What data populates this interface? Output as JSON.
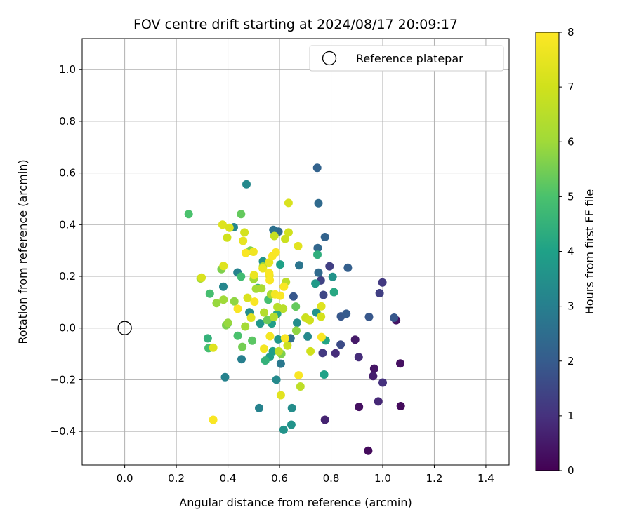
{
  "chart_data": {
    "type": "scatter",
    "title": "FOV centre drift starting at 2024/08/17 20:09:17",
    "xlabel": "Angular distance from reference (arcmin)",
    "ylabel": "Rotation from reference (arcmin)",
    "xlim": [
      -0.165,
      1.49
    ],
    "ylim": [
      -0.53,
      1.12
    ],
    "xticks": [
      0.0,
      0.2,
      0.4,
      0.6,
      0.8,
      1.0,
      1.2,
      1.4
    ],
    "xtick_labels": [
      "0.0",
      "0.2",
      "0.4",
      "0.6",
      "0.8",
      "1.0",
      "1.2",
      "1.4"
    ],
    "yticks": [
      -0.4,
      -0.2,
      0.0,
      0.2,
      0.4,
      0.6,
      0.8,
      1.0
    ],
    "ytick_labels": [
      "−0.4",
      "−0.2",
      "0.0",
      "0.2",
      "0.4",
      "0.6",
      "0.8",
      "1.0"
    ],
    "grid": true,
    "legend": {
      "position": "top-right",
      "entries": [
        {
          "label": "Reference platepar",
          "marker": "open-circle",
          "x": 0.0,
          "y": 0.0
        }
      ]
    },
    "colorbar": {
      "label": "Hours from first FF file",
      "colormap": "viridis",
      "range": [
        0,
        8
      ],
      "ticks": [
        0,
        1,
        2,
        3,
        4,
        5,
        6,
        7,
        8
      ],
      "tick_labels": [
        "0",
        "1",
        "2",
        "3",
        "4",
        "5",
        "6",
        "7",
        "8"
      ]
    },
    "points": [
      {
        "x": 0.944,
        "y": -0.475,
        "h": 0.2
      },
      {
        "x": 1.07,
        "y": -0.302,
        "h": 0.2
      },
      {
        "x": 1.068,
        "y": -0.137,
        "h": 0.3
      },
      {
        "x": 1.052,
        "y": 0.03,
        "h": 0.4
      },
      {
        "x": 0.908,
        "y": -0.305,
        "h": 0.3
      },
      {
        "x": 0.967,
        "y": -0.157,
        "h": 0.4
      },
      {
        "x": 0.893,
        "y": -0.045,
        "h": 0.5
      },
      {
        "x": 0.963,
        "y": -0.186,
        "h": 0.6
      },
      {
        "x": 0.776,
        "y": -0.355,
        "h": 0.7
      },
      {
        "x": 0.983,
        "y": -0.284,
        "h": 0.8
      },
      {
        "x": 1.0,
        "y": -0.211,
        "h": 1.0
      },
      {
        "x": 0.907,
        "y": -0.113,
        "h": 0.9
      },
      {
        "x": 0.817,
        "y": -0.098,
        "h": 0.9
      },
      {
        "x": 0.767,
        "y": -0.097,
        "h": 1.2
      },
      {
        "x": 0.999,
        "y": 0.176,
        "h": 1.2
      },
      {
        "x": 0.988,
        "y": 0.135,
        "h": 1.3
      },
      {
        "x": 0.794,
        "y": 0.239,
        "h": 1.3
      },
      {
        "x": 0.837,
        "y": -0.064,
        "h": 1.6
      },
      {
        "x": 0.77,
        "y": 0.128,
        "h": 1.5
      },
      {
        "x": 0.76,
        "y": 0.184,
        "h": 1.4
      },
      {
        "x": 1.044,
        "y": 0.04,
        "h": 1.9
      },
      {
        "x": 0.947,
        "y": 0.043,
        "h": 1.9
      },
      {
        "x": 0.838,
        "y": 0.045,
        "h": 1.9
      },
      {
        "x": 0.859,
        "y": 0.055,
        "h": 2.0
      },
      {
        "x": 0.865,
        "y": 0.233,
        "h": 2.1
      },
      {
        "x": 0.776,
        "y": 0.352,
        "h": 2.2
      },
      {
        "x": 0.748,
        "y": 0.309,
        "h": 2.3
      },
      {
        "x": 0.746,
        "y": 0.62,
        "h": 2.2
      },
      {
        "x": 0.751,
        "y": 0.483,
        "h": 2.4
      },
      {
        "x": 0.751,
        "y": 0.214,
        "h": 2.4
      },
      {
        "x": 0.654,
        "y": 0.122,
        "h": 1.9
      },
      {
        "x": 0.643,
        "y": -0.04,
        "h": 2.5
      },
      {
        "x": 0.596,
        "y": 0.373,
        "h": 2.4
      },
      {
        "x": 0.576,
        "y": 0.38,
        "h": 2.6
      },
      {
        "x": 0.676,
        "y": 0.243,
        "h": 2.7
      },
      {
        "x": 0.605,
        "y": -0.138,
        "h": 2.8
      },
      {
        "x": 0.453,
        "y": -0.121,
        "h": 3.0
      },
      {
        "x": 0.389,
        "y": -0.19,
        "h": 3.1
      },
      {
        "x": 0.472,
        "y": 0.556,
        "h": 3.3
      },
      {
        "x": 0.423,
        "y": 0.39,
        "h": 3.2
      },
      {
        "x": 0.437,
        "y": 0.215,
        "h": 3.1
      },
      {
        "x": 0.382,
        "y": 0.16,
        "h": 3.2
      },
      {
        "x": 0.483,
        "y": 0.061,
        "h": 3.4
      },
      {
        "x": 0.521,
        "y": -0.31,
        "h": 3.1
      },
      {
        "x": 0.588,
        "y": -0.2,
        "h": 3.3
      },
      {
        "x": 0.616,
        "y": -0.394,
        "h": 3.6
      },
      {
        "x": 0.646,
        "y": -0.374,
        "h": 3.6
      },
      {
        "x": 0.648,
        "y": -0.31,
        "h": 3.4
      },
      {
        "x": 0.709,
        "y": -0.033,
        "h": 3.3
      },
      {
        "x": 0.668,
        "y": 0.02,
        "h": 3.4
      },
      {
        "x": 0.743,
        "y": 0.06,
        "h": 3.6
      },
      {
        "x": 0.739,
        "y": 0.172,
        "h": 3.8
      },
      {
        "x": 0.806,
        "y": 0.198,
        "h": 3.6
      },
      {
        "x": 0.811,
        "y": 0.139,
        "h": 4.2
      },
      {
        "x": 0.773,
        "y": -0.18,
        "h": 4.0
      },
      {
        "x": 0.779,
        "y": -0.048,
        "h": 4.1
      },
      {
        "x": 0.562,
        "y": -0.112,
        "h": 3.9
      },
      {
        "x": 0.574,
        "y": -0.09,
        "h": 3.9
      },
      {
        "x": 0.595,
        "y": -0.044,
        "h": 3.7
      },
      {
        "x": 0.536,
        "y": 0.258,
        "h": 3.6
      },
      {
        "x": 0.603,
        "y": 0.246,
        "h": 4.0
      },
      {
        "x": 0.525,
        "y": 0.018,
        "h": 3.7
      },
      {
        "x": 0.57,
        "y": 0.018,
        "h": 3.9
      },
      {
        "x": 0.591,
        "y": 0.055,
        "h": 4.2
      },
      {
        "x": 0.747,
        "y": 0.284,
        "h": 4.4
      },
      {
        "x": 0.545,
        "y": -0.126,
        "h": 4.5
      },
      {
        "x": 0.4,
        "y": 0.019,
        "h": 4.3
      },
      {
        "x": 0.322,
        "y": -0.04,
        "h": 4.5
      },
      {
        "x": 0.325,
        "y": -0.078,
        "h": 4.9
      },
      {
        "x": 0.33,
        "y": 0.133,
        "h": 4.9
      },
      {
        "x": 0.516,
        "y": 0.155,
        "h": 4.6
      },
      {
        "x": 0.451,
        "y": 0.199,
        "h": 4.8
      },
      {
        "x": 0.557,
        "y": 0.11,
        "h": 4.9
      },
      {
        "x": 0.438,
        "y": -0.03,
        "h": 5.0
      },
      {
        "x": 0.494,
        "y": -0.049,
        "h": 5.2
      },
      {
        "x": 0.248,
        "y": 0.441,
        "h": 5.0
      },
      {
        "x": 0.451,
        "y": 0.441,
        "h": 5.3
      },
      {
        "x": 0.487,
        "y": 0.3,
        "h": 5.6
      },
      {
        "x": 0.375,
        "y": 0.228,
        "h": 5.6
      },
      {
        "x": 0.393,
        "y": 0.011,
        "h": 5.6
      },
      {
        "x": 0.456,
        "y": -0.073,
        "h": 5.5
      },
      {
        "x": 0.553,
        "y": 0.031,
        "h": 5.4
      },
      {
        "x": 0.607,
        "y": -0.1,
        "h": 5.6
      },
      {
        "x": 0.663,
        "y": 0.083,
        "h": 5.3
      },
      {
        "x": 0.665,
        "y": -0.01,
        "h": 5.8
      },
      {
        "x": 0.294,
        "y": 0.192,
        "h": 6.1
      },
      {
        "x": 0.356,
        "y": 0.096,
        "h": 5.9
      },
      {
        "x": 0.383,
        "y": 0.11,
        "h": 6.0
      },
      {
        "x": 0.4,
        "y": 0.02,
        "h": 5.9
      },
      {
        "x": 0.425,
        "y": 0.103,
        "h": 5.8
      },
      {
        "x": 0.467,
        "y": 0.006,
        "h": 6.1
      },
      {
        "x": 0.5,
        "y": 0.19,
        "h": 6.0
      },
      {
        "x": 0.509,
        "y": 0.152,
        "h": 6.1
      },
      {
        "x": 0.53,
        "y": 0.153,
        "h": 6.2
      },
      {
        "x": 0.536,
        "y": 0.238,
        "h": 6.2
      },
      {
        "x": 0.54,
        "y": 0.06,
        "h": 6.4
      },
      {
        "x": 0.567,
        "y": 0.13,
        "h": 6.3
      },
      {
        "x": 0.578,
        "y": 0.043,
        "h": 6.4
      },
      {
        "x": 0.592,
        "y": 0.081,
        "h": 6.5
      },
      {
        "x": 0.597,
        "y": -0.09,
        "h": 6.6
      },
      {
        "x": 0.614,
        "y": 0.075,
        "h": 6.5
      },
      {
        "x": 0.625,
        "y": 0.178,
        "h": 6.6
      },
      {
        "x": 0.631,
        "y": -0.068,
        "h": 6.9
      },
      {
        "x": 0.681,
        "y": -0.226,
        "h": 6.6
      },
      {
        "x": 0.701,
        "y": 0.04,
        "h": 6.9
      },
      {
        "x": 0.717,
        "y": 0.03,
        "h": 7.0
      },
      {
        "x": 0.72,
        "y": -0.09,
        "h": 7.0
      },
      {
        "x": 0.761,
        "y": 0.044,
        "h": 7.1
      },
      {
        "x": 0.762,
        "y": 0.084,
        "h": 7.3
      },
      {
        "x": 0.58,
        "y": 0.356,
        "h": 6.8
      },
      {
        "x": 0.622,
        "y": 0.345,
        "h": 6.9
      },
      {
        "x": 0.635,
        "y": 0.37,
        "h": 7.0
      },
      {
        "x": 0.635,
        "y": 0.484,
        "h": 7.2
      },
      {
        "x": 0.672,
        "y": 0.317,
        "h": 7.4
      },
      {
        "x": 0.605,
        "y": -0.26,
        "h": 7.4
      },
      {
        "x": 0.343,
        "y": -0.076,
        "h": 7.3
      },
      {
        "x": 0.298,
        "y": 0.195,
        "h": 7.2
      },
      {
        "x": 0.383,
        "y": 0.24,
        "h": 7.3
      },
      {
        "x": 0.379,
        "y": 0.4,
        "h": 7.3
      },
      {
        "x": 0.397,
        "y": 0.35,
        "h": 7.0
      },
      {
        "x": 0.406,
        "y": 0.388,
        "h": 7.2
      },
      {
        "x": 0.459,
        "y": 0.337,
        "h": 7.5
      },
      {
        "x": 0.464,
        "y": 0.37,
        "h": 7.1
      },
      {
        "x": 0.476,
        "y": 0.117,
        "h": 7.2
      },
      {
        "x": 0.49,
        "y": 0.04,
        "h": 7.4
      },
      {
        "x": 0.499,
        "y": 0.295,
        "h": 7.7
      },
      {
        "x": 0.501,
        "y": 0.205,
        "h": 7.6
      },
      {
        "x": 0.535,
        "y": 0.231,
        "h": 7.6
      },
      {
        "x": 0.561,
        "y": 0.203,
        "h": 7.6
      },
      {
        "x": 0.56,
        "y": 0.254,
        "h": 7.5
      },
      {
        "x": 0.583,
        "y": 0.13,
        "h": 7.8
      },
      {
        "x": 0.563,
        "y": -0.032,
        "h": 7.8
      },
      {
        "x": 0.54,
        "y": -0.08,
        "h": 7.8
      },
      {
        "x": 0.621,
        "y": -0.04,
        "h": 7.9
      },
      {
        "x": 0.343,
        "y": -0.355,
        "h": 7.9
      },
      {
        "x": 0.438,
        "y": 0.074,
        "h": 7.9
      },
      {
        "x": 0.469,
        "y": 0.29,
        "h": 7.9
      },
      {
        "x": 0.503,
        "y": 0.102,
        "h": 7.9
      },
      {
        "x": 0.56,
        "y": 0.213,
        "h": 7.9
      },
      {
        "x": 0.562,
        "y": 0.185,
        "h": 7.9
      },
      {
        "x": 0.572,
        "y": 0.278,
        "h": 7.9
      },
      {
        "x": 0.586,
        "y": 0.293,
        "h": 7.9
      },
      {
        "x": 0.603,
        "y": 0.125,
        "h": 7.9
      },
      {
        "x": 0.617,
        "y": 0.16,
        "h": 7.9
      },
      {
        "x": 0.674,
        "y": -0.183,
        "h": 7.9
      },
      {
        "x": 0.763,
        "y": -0.035,
        "h": 7.9
      }
    ]
  }
}
